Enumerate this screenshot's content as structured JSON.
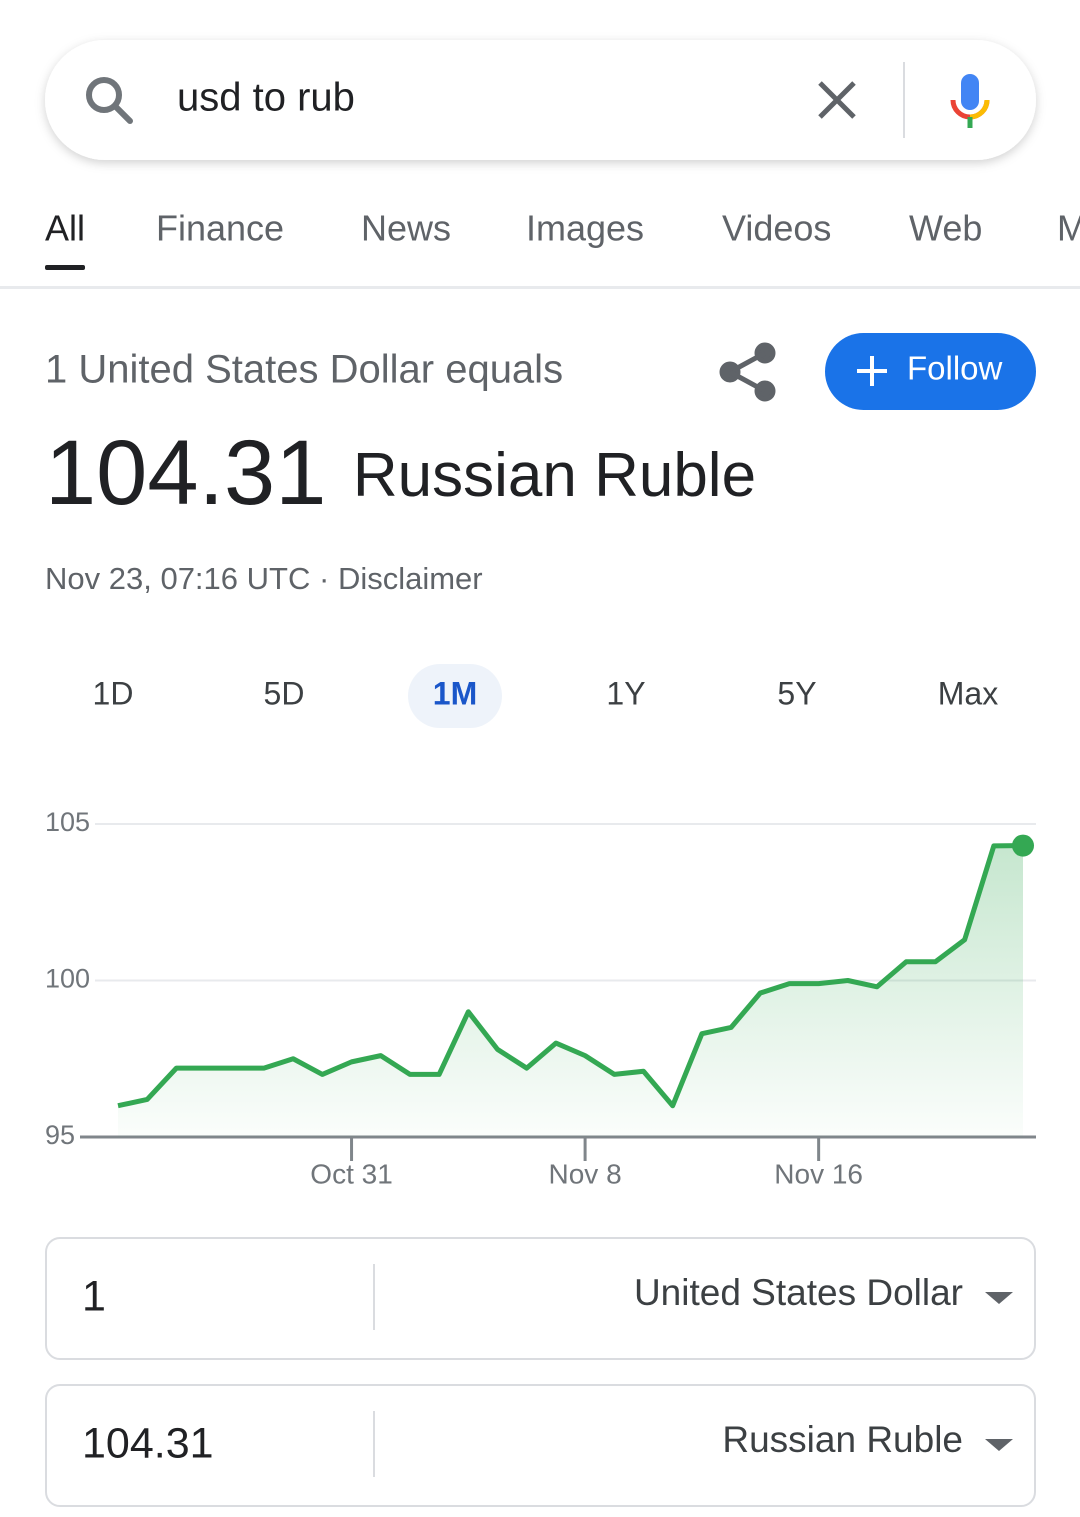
{
  "search": {
    "query": "usd to rub"
  },
  "tabs": {
    "items": [
      "All",
      "Finance",
      "News",
      "Images",
      "Videos",
      "Web",
      "M"
    ],
    "active": 0
  },
  "header": {
    "lead": "1 United States Dollar equals",
    "value": "104.31",
    "currency": "Russian Ruble",
    "timestamp": "Nov 23, 07:16 UTC",
    "separator": "·",
    "disclaimer": "Disclaimer",
    "follow": "Follow"
  },
  "ranges": {
    "items": [
      "1D",
      "5D",
      "1M",
      "1Y",
      "5Y",
      "Max"
    ],
    "active": 2
  },
  "chart_data": {
    "type": "line",
    "x": [
      "Oct 23",
      "Oct 24",
      "Oct 25",
      "Oct 26",
      "Oct 27",
      "Oct 28",
      "Oct 29",
      "Oct 30",
      "Oct 31",
      "Nov 1",
      "Nov 2",
      "Nov 3",
      "Nov 4",
      "Nov 5",
      "Nov 6",
      "Nov 7",
      "Nov 8",
      "Nov 9",
      "Nov 10",
      "Nov 11",
      "Nov 12",
      "Nov 13",
      "Nov 14",
      "Nov 15",
      "Nov 16",
      "Nov 17",
      "Nov 18",
      "Nov 19",
      "Nov 20",
      "Nov 21",
      "Nov 22",
      "Nov 23"
    ],
    "values": [
      96.0,
      96.2,
      97.2,
      97.2,
      97.2,
      97.2,
      97.5,
      97.0,
      97.4,
      97.6,
      97.0,
      97.0,
      99.0,
      97.8,
      97.2,
      98.0,
      97.6,
      97.0,
      97.1,
      96.0,
      98.3,
      98.5,
      99.6,
      99.9,
      99.9,
      100.0,
      99.8,
      100.6,
      100.6,
      101.3,
      104.3,
      104.31
    ],
    "color": "#34a853",
    "ylim": [
      95,
      105
    ],
    "yticks": [
      95,
      100,
      105
    ],
    "xticks": [
      "Oct 31",
      "Nov 8",
      "Nov 16"
    ],
    "grid": true
  },
  "converter": {
    "rows": [
      {
        "amount": "1",
        "currency": "United States Dollar"
      },
      {
        "amount": "104.31",
        "currency": "Russian Ruble"
      }
    ]
  }
}
